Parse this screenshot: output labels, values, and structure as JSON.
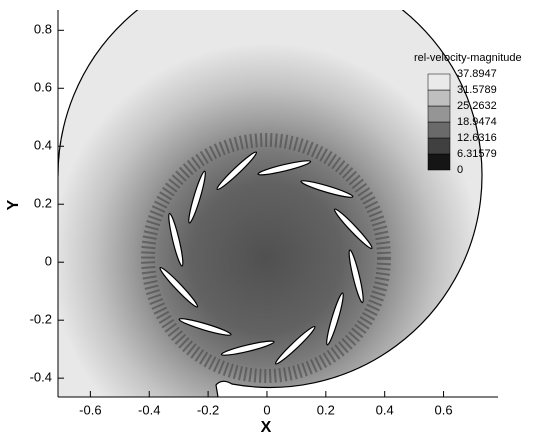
{
  "chart_data": {
    "type": "contour",
    "xlabel": "X",
    "ylabel": "Y",
    "xlim": [
      -0.71,
      0.785
    ],
    "ylim": [
      -0.465,
      0.87
    ],
    "xticks": [
      -0.6,
      -0.4,
      -0.2,
      0,
      0.2,
      0.4,
      0.6
    ],
    "yticks": [
      -0.4,
      -0.2,
      0,
      0.2,
      0.4,
      0.6,
      0.8
    ],
    "colorbar": {
      "title": "rel-velocity-magnitude",
      "levels": [
        0,
        6.31579,
        12.6316,
        18.9474,
        25.2632,
        31.5789,
        37.8947
      ]
    }
  }
}
